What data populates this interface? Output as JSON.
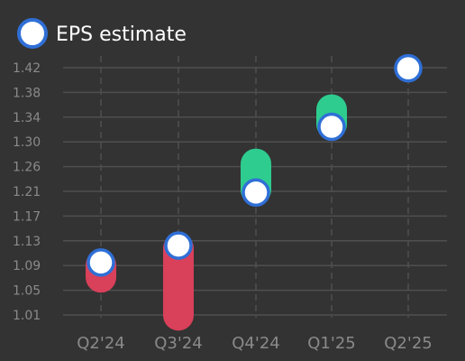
{
  "colors": {
    "background": "#333333",
    "grid": "#4f4f4f",
    "beat": "#2ecc8f",
    "miss": "#d9405a",
    "estimate_fill": "#ffffff",
    "estimate_stroke": "#2f6fd6",
    "tick_text": "#8a8a8a",
    "legend_text": "#ffffff"
  },
  "legend": {
    "label": "EPS estimate",
    "position": "top-left"
  },
  "chart_data": {
    "type": "range-dot",
    "categories": [
      "Q2'24",
      "Q3'24",
      "Q4'24",
      "Q1'25",
      "Q2'25"
    ],
    "series": [
      {
        "name": "EPS estimate",
        "values": [
          1.097,
          1.125,
          1.213,
          1.322,
          1.419
        ]
      },
      {
        "values": [
          1.068,
          1.005,
          1.265,
          1.355,
          null
        ]
      }
    ],
    "y_ticks": [
      "1.01",
      "1.05",
      "1.09",
      "1.13",
      "1.17",
      "1.21",
      "1.26",
      "1.30",
      "1.34",
      "1.38",
      "1.42"
    ],
    "ylim": [
      1.01,
      1.42
    ],
    "grid": true,
    "x_grid_style": "dashed"
  }
}
